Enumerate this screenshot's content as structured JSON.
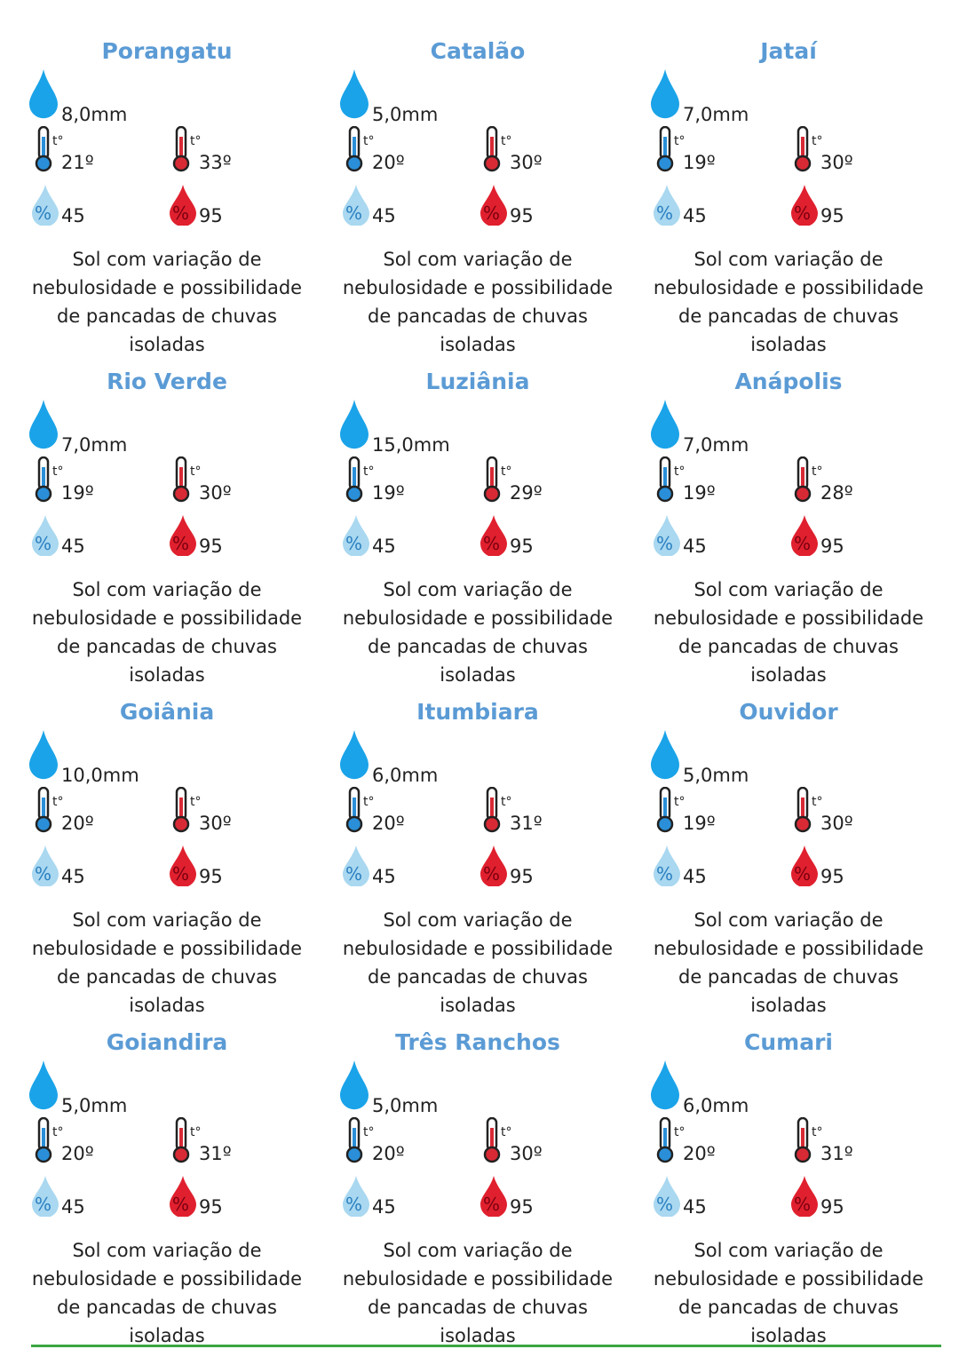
{
  "icon_labels": {
    "temperature": "t°",
    "humidity": "%"
  },
  "cities": [
    {
      "name": "Porangatu",
      "rain": "8,0mm",
      "temp_min": "21º",
      "temp_max": "33º",
      "humidity_min": "45",
      "humidity_max": "95",
      "description": "Sol com variação de nebulosidade e possibilidade de pancadas de chuvas isoladas"
    },
    {
      "name": "Catalão",
      "rain": "5,0mm",
      "temp_min": "20º",
      "temp_max": "30º",
      "humidity_min": "45",
      "humidity_max": "95",
      "description": "Sol com variação de nebulosidade e possibilidade de pancadas de chuvas isoladas"
    },
    {
      "name": "Jataí",
      "rain": "7,0mm",
      "temp_min": "19º",
      "temp_max": "30º",
      "humidity_min": "45",
      "humidity_max": "95",
      "description": "Sol com variação de nebulosidade e possibilidade de pancadas de chuvas isoladas"
    },
    {
      "name": "Rio Verde",
      "rain": "7,0mm",
      "temp_min": "19º",
      "temp_max": "30º",
      "humidity_min": "45",
      "humidity_max": "95",
      "description": "Sol com variação de nebulosidade e possibilidade de pancadas de chuvas isoladas"
    },
    {
      "name": "Luziânia",
      "rain": "15,0mm",
      "temp_min": "19º",
      "temp_max": "29º",
      "humidity_min": "45",
      "humidity_max": "95",
      "description": "Sol com variação de nebulosidade e possibilidade de pancadas de chuvas isoladas"
    },
    {
      "name": "Anápolis",
      "rain": "7,0mm",
      "temp_min": "19º",
      "temp_max": "28º",
      "humidity_min": "45",
      "humidity_max": "95",
      "description": "Sol com variação de nebulosidade e possibilidade de pancadas de chuvas isoladas"
    },
    {
      "name": "Goiânia",
      "rain": "10,0mm",
      "temp_min": "20º",
      "temp_max": "30º",
      "humidity_min": "45",
      "humidity_max": "95",
      "description": "Sol com variação de nebulosidade e possibilidade de pancadas de chuvas isoladas"
    },
    {
      "name": "Itumbiara",
      "rain": "6,0mm",
      "temp_min": "20º",
      "temp_max": "31º",
      "humidity_min": "45",
      "humidity_max": "95",
      "description": "Sol com variação de nebulosidade e possibilidade de pancadas de chuvas isoladas"
    },
    {
      "name": "Ouvidor",
      "rain": "5,0mm",
      "temp_min": "19º",
      "temp_max": "30º",
      "humidity_min": "45",
      "humidity_max": "95",
      "description": "Sol com variação de nebulosidade e possibilidade de pancadas de chuvas isoladas"
    },
    {
      "name": "Goiandira",
      "rain": "5,0mm",
      "temp_min": "20º",
      "temp_max": "31º",
      "humidity_min": "45",
      "humidity_max": "95",
      "description": "Sol com variação de nebulosidade e possibilidade de pancadas de chuvas isoladas"
    },
    {
      "name": "Três Ranchos",
      "rain": "5,0mm",
      "temp_min": "20º",
      "temp_max": "30º",
      "humidity_min": "45",
      "humidity_max": "95",
      "description": "Sol com variação de nebulosidade e possibilidade de pancadas de chuvas isoladas"
    },
    {
      "name": "Cumari",
      "rain": "6,0mm",
      "temp_min": "20º",
      "temp_max": "31º",
      "humidity_min": "45",
      "humidity_max": "95",
      "description": "Sol com variação de nebulosidade e possibilidade de pancadas de chuvas isoladas"
    }
  ]
}
